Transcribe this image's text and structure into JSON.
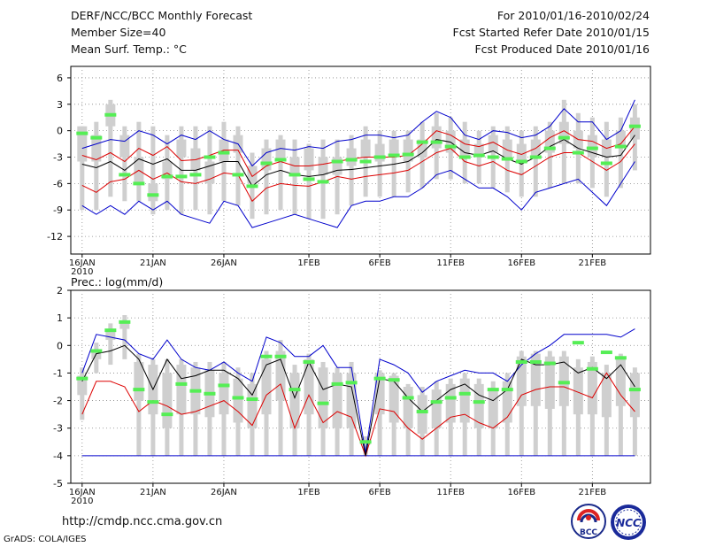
{
  "header": {
    "left_line1": "DERF/NCC/BCC Monthly Forecast",
    "left_line2": "Member Size=40",
    "left_line3": "Mean Surf. Temp.: °C",
    "right_line1": "For 2010/01/16-2010/02/24",
    "right_line2": "Fcst Started Refer Date 2010/01/15",
    "right_line3": "Fcst Produced Date 2010/01/16"
  },
  "footer": {
    "url": "http://cmdp.ncc.cma.gov.cn",
    "credit": "GrADS: COLA/IGES"
  },
  "logos": {
    "bcc": "BCC",
    "ncc": "NCC"
  },
  "colors": {
    "box": "#cfcfcf",
    "median": "#55ee55",
    "mean": "#000000",
    "sd_band": "#dd0000",
    "extreme": "#0000cc",
    "grid": "#888888"
  },
  "chart_data": [
    {
      "type": "box",
      "title": "Mean Surf. Temp.: °C",
      "ylabel": "°C",
      "ylim": [
        -14,
        7.3
      ],
      "yticks": [
        6,
        3,
        0,
        -3,
        -6,
        -9,
        -12
      ],
      "xtick_labels": [
        "16JAN",
        "21JAN",
        "26JAN",
        "1FEB",
        "6FEB",
        "11FEB",
        "16FEB",
        "21FEB"
      ],
      "year_label": "2010",
      "days": 40,
      "series": [
        {
          "name": "max",
          "values": [
            -8.5,
            -9.5,
            -8.5,
            -9.5,
            -8.0,
            -9.0,
            -8.0,
            -9.5,
            -10.0,
            -10.5,
            -8.0,
            -8.5,
            -11.0,
            -10.5,
            -10.0,
            -9.5,
            -10.0,
            -10.5,
            -11.0,
            -8.5,
            -8.0,
            -8.0,
            -7.5,
            -7.5,
            -6.5,
            -5.0,
            -4.5,
            -5.5,
            -6.5,
            -6.5,
            -7.5,
            -9.0,
            -7.0,
            -6.5,
            -6.0,
            -5.5,
            -7.0,
            -8.5,
            -6.0,
            -3.5
          ]
        },
        {
          "name": "mean_minus_sd",
          "values": [
            -6.2,
            -7.0,
            -5.8,
            -5.5,
            -4.5,
            -5.5,
            -4.8,
            -5.8,
            -6.0,
            -5.5,
            -4.8,
            -5.0,
            -8.0,
            -6.5,
            -6.0,
            -6.2,
            -6.3,
            -5.8,
            -5.2,
            -5.5,
            -5.2,
            -5.0,
            -4.8,
            -4.5,
            -3.5,
            -2.5,
            -2.0,
            -3.5,
            -4.0,
            -3.5,
            -4.5,
            -5.0,
            -4.0,
            -3.0,
            -2.5,
            -2.5,
            -3.5,
            -4.5,
            -3.5,
            -1.5
          ]
        },
        {
          "name": "mean",
          "values": [
            -3.8,
            -4.2,
            -3.5,
            -4.5,
            -3.2,
            -3.8,
            -3.2,
            -4.5,
            -4.5,
            -4.0,
            -3.5,
            -3.5,
            -6.3,
            -5.0,
            -4.5,
            -5.0,
            -5.2,
            -5.0,
            -4.5,
            -4.4,
            -4.2,
            -4.0,
            -3.8,
            -3.5,
            -2.5,
            -1.0,
            -1.3,
            -2.5,
            -2.8,
            -2.3,
            -3.2,
            -3.8,
            -3.0,
            -1.8,
            -1.0,
            -2.0,
            -2.5,
            -3.0,
            -2.8,
            -0.5
          ]
        },
        {
          "name": "mean_plus_sd",
          "values": [
            -2.8,
            -3.3,
            -2.5,
            -3.5,
            -2.0,
            -2.8,
            -1.8,
            -3.4,
            -3.3,
            -2.8,
            -2.2,
            -2.2,
            -5.2,
            -4.0,
            -3.5,
            -4.0,
            -4.0,
            -3.8,
            -3.5,
            -3.2,
            -3.0,
            -3.0,
            -3.0,
            -2.8,
            -1.5,
            0.0,
            -0.5,
            -1.5,
            -1.8,
            -1.3,
            -2.2,
            -2.7,
            -2.0,
            -0.8,
            0.0,
            -1.0,
            -1.2,
            -2.0,
            -1.5,
            0.5
          ]
        },
        {
          "name": "min",
          "values": [
            -2.0,
            -1.5,
            -1.0,
            -1.2,
            0.0,
            -0.5,
            -1.5,
            -0.5,
            -1.0,
            0.0,
            -1.0,
            -1.5,
            -4.0,
            -2.5,
            -2.0,
            -2.2,
            -1.8,
            -2.0,
            -1.2,
            -1.0,
            -0.5,
            -0.5,
            -0.8,
            -0.5,
            1.0,
            2.2,
            1.5,
            -0.5,
            -1.0,
            0.0,
            -0.2,
            -0.8,
            -0.5,
            0.5,
            2.5,
            1.0,
            1.0,
            -1.0,
            0.0,
            3.5
          ]
        },
        {
          "name": "q1",
          "values": [
            -3.5,
            -3.5,
            0.5,
            -3.0,
            -6.0,
            -8.0,
            -5.5,
            -3.0,
            -4.5,
            -6.0,
            -3.5,
            -2.5,
            -6.0,
            -4.5,
            -3.5,
            -5.0,
            -4.5,
            -5.0,
            -5.0,
            -4.0,
            -3.0,
            -3.5,
            -3.0,
            -3.5,
            -3.0,
            -2.0,
            -2.5,
            -3.0,
            -3.0,
            -2.5,
            -3.0,
            -3.5,
            -3.0,
            -2.5,
            -1.5,
            -2.0,
            -3.0,
            -3.0,
            -2.0,
            -1.0
          ]
        },
        {
          "name": "q3",
          "values": [
            0.5,
            -0.5,
            3.0,
            -0.5,
            -3.0,
            -6.0,
            -3.5,
            -1.0,
            -2.0,
            -3.5,
            -1.0,
            -0.5,
            -4.0,
            -2.0,
            -1.0,
            -3.0,
            -2.0,
            -3.0,
            -3.0,
            -2.0,
            -1.0,
            -1.5,
            -1.0,
            -1.0,
            -1.0,
            0.5,
            0.0,
            -1.0,
            -1.5,
            -0.5,
            -1.0,
            -1.5,
            -1.0,
            0.0,
            1.0,
            0.0,
            -0.5,
            -1.0,
            0.0,
            1.5
          ]
        },
        {
          "name": "ens_low",
          "values": [
            -9.0,
            -9.0,
            -7.5,
            -8.0,
            -8.0,
            -9.5,
            -9.0,
            -9.5,
            -9.0,
            -9.5,
            -8.0,
            -8.5,
            -10.0,
            -9.5,
            -9.0,
            -9.5,
            -10.0,
            -10.0,
            -9.5,
            -8.5,
            -7.5,
            -7.5,
            -7.5,
            -7.0,
            -6.5,
            -5.5,
            -5.5,
            -6.0,
            -6.0,
            -6.5,
            -7.0,
            -7.5,
            -7.5,
            -6.5,
            -6.0,
            -6.0,
            -6.5,
            -7.5,
            -6.5,
            -4.5
          ]
        },
        {
          "name": "ens_high",
          "values": [
            0.5,
            1.0,
            3.5,
            0.5,
            1.0,
            0.5,
            -0.5,
            0.5,
            0.5,
            0.5,
            1.0,
            0.5,
            -2.5,
            -1.0,
            -0.5,
            -1.0,
            -1.5,
            -1.0,
            -1.0,
            -0.5,
            0.5,
            0.0,
            0.0,
            0.0,
            1.0,
            2.0,
            1.5,
            1.0,
            0.0,
            0.5,
            0.5,
            0.0,
            0.5,
            1.0,
            3.5,
            2.0,
            1.5,
            1.0,
            1.5,
            3.0
          ]
        },
        {
          "name": "median",
          "values": [
            -0.3,
            -0.8,
            1.8,
            -5.0,
            -6.0,
            -7.3,
            -5.2,
            -5.2,
            -5.0,
            -3.0,
            -2.5,
            -5.0,
            -6.3,
            -3.7,
            -3.3,
            -5.0,
            -5.5,
            -5.8,
            -3.5,
            -3.3,
            -3.5,
            -3.0,
            -2.8,
            -2.7,
            -1.3,
            -1.3,
            -1.8,
            -3.0,
            -2.8,
            -3.0,
            -3.2,
            -3.5,
            -3.0,
            -2.0,
            -0.8,
            -2.5,
            -2.0,
            -3.7,
            -1.8,
            0.5
          ]
        }
      ]
    },
    {
      "type": "box",
      "title": "Prec.: log(mm/d)",
      "ylabel": "log(mm/d)",
      "ylim": [
        -5,
        2
      ],
      "yticks": [
        2,
        1,
        0,
        -1,
        -2,
        -3,
        -4,
        -5
      ],
      "xtick_labels": [
        "16JAN",
        "21JAN",
        "26JAN",
        "1FEB",
        "6FEB",
        "11FEB",
        "16FEB",
        "21FEB"
      ],
      "year_label": "2010",
      "days": 40,
      "series": [
        {
          "name": "max",
          "values": [
            -1.0,
            0.4,
            0.3,
            0.2,
            -0.3,
            -0.5,
            0.2,
            -0.5,
            -0.8,
            -0.9,
            -0.6,
            -1.0,
            -1.3,
            0.3,
            0.1,
            -0.4,
            -0.4,
            0.0,
            -0.8,
            -0.8,
            -3.9,
            -0.5,
            -0.7,
            -1.0,
            -1.7,
            -1.3,
            -1.1,
            -0.9,
            -1.0,
            -1.0,
            -1.3,
            -0.7,
            -0.3,
            0.0,
            0.4,
            0.4,
            0.4,
            0.4,
            0.3,
            0.6
          ]
        },
        {
          "name": "mean",
          "values": [
            -1.3,
            -0.3,
            -0.2,
            0.0,
            -0.5,
            -1.6,
            -0.5,
            -1.2,
            -1.1,
            -0.9,
            -0.9,
            -1.2,
            -1.8,
            -0.7,
            -0.5,
            -1.9,
            -0.6,
            -1.6,
            -1.4,
            -1.5,
            -4.0,
            -1.2,
            -1.3,
            -1.9,
            -2.4,
            -2.0,
            -1.6,
            -1.4,
            -1.8,
            -2.0,
            -1.6,
            -0.5,
            -0.7,
            -0.7,
            -0.6,
            -1.0,
            -0.8,
            -1.2,
            -0.7,
            -1.5
          ]
        },
        {
          "name": "mean_minus_sd",
          "values": [
            -2.5,
            -1.3,
            -1.3,
            -1.5,
            -2.4,
            -2.0,
            -2.2,
            -2.5,
            -2.4,
            -2.2,
            -2.0,
            -2.4,
            -2.9,
            -1.8,
            -1.4,
            -3.0,
            -1.8,
            -2.8,
            -2.4,
            -2.6,
            -4.0,
            -2.3,
            -2.4,
            -3.0,
            -3.4,
            -3.0,
            -2.6,
            -2.5,
            -2.8,
            -3.0,
            -2.6,
            -1.8,
            -1.6,
            -1.5,
            -1.5,
            -1.7,
            -1.9,
            -1.0,
            -1.8,
            -2.4
          ]
        },
        {
          "name": "min",
          "values": [
            -4.0,
            -4.0,
            -4.0,
            -4.0,
            -4.0,
            -4.0,
            -4.0,
            -4.0,
            -4.0,
            -4.0,
            -4.0,
            -4.0,
            -4.0,
            -4.0,
            -4.0,
            -4.0,
            -4.0,
            -4.0,
            -4.0,
            -4.0,
            -4.0,
            -4.0,
            -4.0,
            -4.0,
            -4.0,
            -4.0,
            -4.0,
            -4.0,
            -4.0,
            -4.0,
            -4.0,
            -4.0,
            -4.0,
            -4.0,
            -4.0,
            -4.0,
            -4.0,
            -4.0,
            -4.0,
            -4.0
          ]
        },
        {
          "name": "ens_high",
          "values": [
            -0.8,
            0.1,
            0.8,
            1.1,
            -0.3,
            -0.5,
            -0.5,
            -0.5,
            -0.6,
            -0.6,
            -0.6,
            -0.8,
            -1.0,
            -0.2,
            0.2,
            -0.7,
            -0.3,
            -0.6,
            -0.8,
            -0.6,
            -3.3,
            -0.9,
            -1.0,
            -1.4,
            -1.5,
            -1.3,
            -1.2,
            -1.0,
            -1.2,
            -1.3,
            -1.0,
            -0.2,
            -0.2,
            -0.2,
            -0.2,
            -0.5,
            -0.4,
            -0.7,
            -0.3,
            -0.8
          ]
        },
        {
          "name": "ens_low",
          "values": [
            -2.7,
            -1.0,
            -0.7,
            -0.5,
            -4.0,
            -4.0,
            -4.0,
            -4.0,
            -4.0,
            -4.0,
            -4.0,
            -4.0,
            -4.0,
            -4.0,
            -4.0,
            -4.0,
            -4.0,
            -4.0,
            -4.0,
            -4.0,
            -4.0,
            -4.0,
            -4.0,
            -4.0,
            -4.0,
            -4.0,
            -4.0,
            -4.0,
            -4.0,
            -4.0,
            -4.0,
            -4.0,
            -4.0,
            -4.0,
            -4.0,
            -4.0,
            -4.0,
            -4.0,
            -4.0,
            -4.0
          ]
        },
        {
          "name": "q3",
          "values": [
            -1.1,
            -0.2,
            0.5,
            0.8,
            -0.6,
            -0.7,
            -1.0,
            -0.7,
            -0.8,
            -0.9,
            -1.0,
            -1.2,
            -1.4,
            -0.5,
            -0.2,
            -1.0,
            -0.5,
            -0.8,
            -1.0,
            -1.0,
            -3.4,
            -1.0,
            -1.1,
            -1.5,
            -1.8,
            -1.6,
            -1.4,
            -1.2,
            -1.4,
            -1.6,
            -1.3,
            -0.4,
            -0.3,
            -0.4,
            -0.4,
            -0.8,
            -0.6,
            -1.0,
            -0.5,
            -1.0
          ]
        },
        {
          "name": "q1",
          "values": [
            -1.8,
            -0.5,
            0.2,
            0.6,
            -2.0,
            -2.5,
            -3.0,
            -2.5,
            -2.5,
            -2.6,
            -2.5,
            -2.8,
            -3.0,
            -2.5,
            -2.0,
            -3.0,
            -2.5,
            -3.0,
            -3.0,
            -3.0,
            -3.6,
            -2.5,
            -2.8,
            -3.0,
            -3.2,
            -3.0,
            -2.8,
            -2.8,
            -3.0,
            -3.0,
            -2.8,
            -2.2,
            -2.2,
            -2.3,
            -2.2,
            -2.5,
            -2.5,
            -2.6,
            -2.2,
            -2.6
          ]
        },
        {
          "name": "median",
          "values": [
            -1.2,
            -0.2,
            0.55,
            0.85,
            -1.6,
            -2.05,
            -2.5,
            -1.4,
            -1.65,
            -1.75,
            -1.45,
            -1.9,
            -1.95,
            -0.4,
            -0.4,
            -1.6,
            -0.6,
            -2.1,
            -1.4,
            -1.35,
            -3.5,
            -1.2,
            -1.25,
            -1.9,
            -2.4,
            -2.05,
            -1.9,
            -1.75,
            -2.05,
            -1.6,
            -1.6,
            -0.6,
            -0.6,
            -0.65,
            -1.35,
            0.1,
            -0.85,
            -0.25,
            -0.45,
            -1.6
          ]
        }
      ]
    }
  ]
}
